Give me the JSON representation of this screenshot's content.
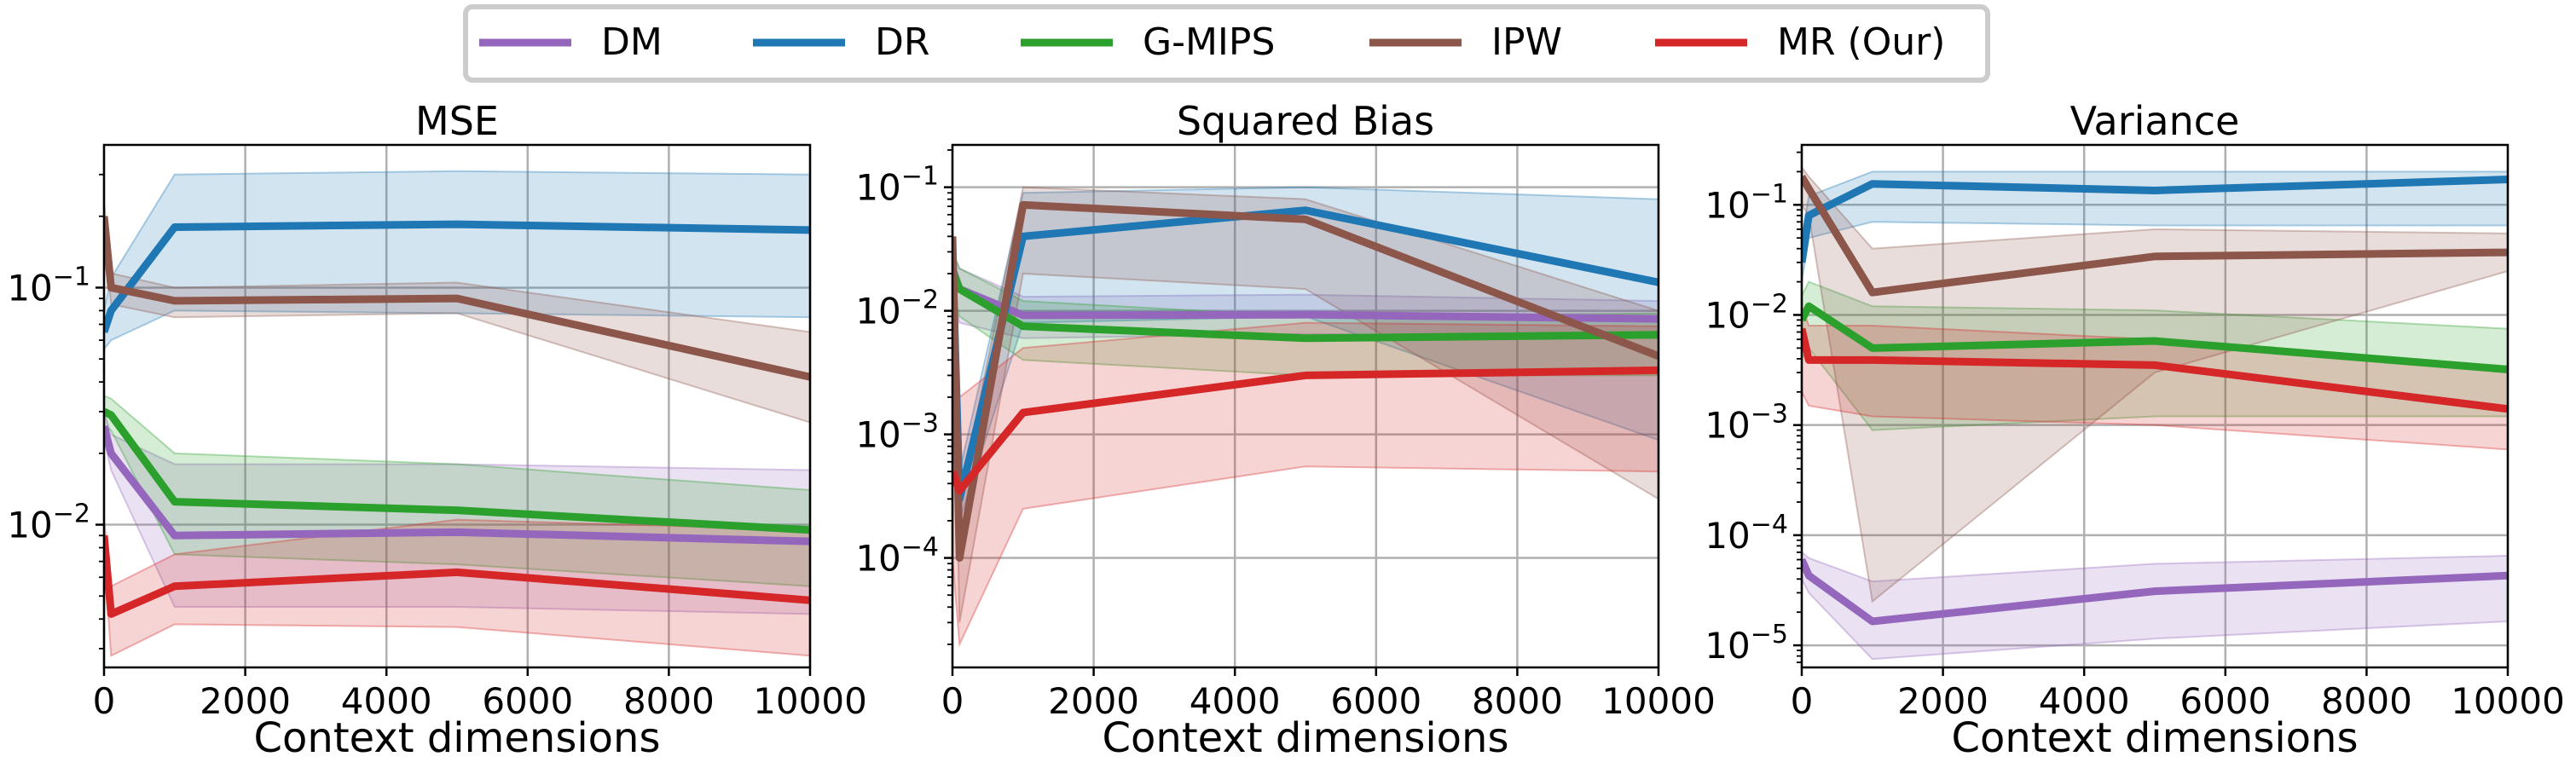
{
  "legend": [
    {
      "label": "DM",
      "color": "#9467bd"
    },
    {
      "label": "DR",
      "color": "#1f77b4"
    },
    {
      "label": "G-MIPS",
      "color": "#2ca02c"
    },
    {
      "label": "IPW",
      "color": "#8c564b"
    },
    {
      "label": "MR (Our)",
      "color": "#d62728"
    }
  ],
  "chart_data": [
    {
      "type": "line",
      "title": "MSE",
      "xlabel": "Context dimensions",
      "ylabel": "",
      "yscale": "log",
      "xlim": [
        0,
        10000
      ],
      "ylim": [
        0.0025,
        0.4
      ],
      "grid": true,
      "xticks": [
        0,
        2000,
        4000,
        6000,
        8000,
        10000
      ],
      "xtick_labels": [
        "0",
        "2000",
        "4000",
        "6000",
        "8000",
        "10000"
      ],
      "yticks": [
        0.01,
        0.1
      ],
      "ytick_labels": [
        {
          "base": "10",
          "exp": "−2"
        },
        {
          "base": "10",
          "exp": "−1"
        }
      ],
      "x": [
        0,
        100,
        1000,
        5000,
        10000
      ],
      "series": [
        {
          "name": "DM",
          "values": [
            0.026,
            0.02,
            0.009,
            0.0093,
            0.0085
          ],
          "lower": [
            0.023,
            0.017,
            0.0045,
            0.0045,
            0.0042
          ],
          "upper": [
            0.03,
            0.024,
            0.018,
            0.018,
            0.017
          ]
        },
        {
          "name": "DR",
          "values": [
            0.065,
            0.08,
            0.18,
            0.185,
            0.175
          ],
          "lower": [
            0.055,
            0.06,
            0.08,
            0.078,
            0.075
          ],
          "upper": [
            0.08,
            0.11,
            0.3,
            0.31,
            0.3
          ]
        },
        {
          "name": "G-MIPS",
          "values": [
            0.03,
            0.029,
            0.0125,
            0.0115,
            0.0095
          ],
          "lower": [
            0.026,
            0.025,
            0.0075,
            0.0068,
            0.0055
          ],
          "upper": [
            0.035,
            0.034,
            0.02,
            0.018,
            0.014
          ]
        },
        {
          "name": "IPW",
          "values": [
            0.2,
            0.1,
            0.088,
            0.09,
            0.042
          ],
          "lower": [
            0.17,
            0.085,
            0.075,
            0.078,
            0.027
          ],
          "upper": [
            0.23,
            0.115,
            0.1,
            0.105,
            0.065
          ]
        },
        {
          "name": "MR (Our)",
          "values": [
            0.009,
            0.0042,
            0.0055,
            0.0063,
            0.0048
          ],
          "lower": [
            0.0075,
            0.0028,
            0.0038,
            0.0037,
            0.0028
          ],
          "upper": [
            0.0105,
            0.0055,
            0.0075,
            0.0105,
            0.0095
          ]
        }
      ]
    },
    {
      "type": "line",
      "title": "Squared Bias",
      "xlabel": "Context dimensions",
      "ylabel": "",
      "yscale": "log",
      "xlim": [
        0,
        10000
      ],
      "ylim": [
        1.3e-05,
        0.22
      ],
      "grid": true,
      "xticks": [
        0,
        2000,
        4000,
        6000,
        8000,
        10000
      ],
      "xtick_labels": [
        "0",
        "2000",
        "4000",
        "6000",
        "8000",
        "10000"
      ],
      "yticks": [
        0.0001,
        0.001,
        0.01,
        0.1
      ],
      "ytick_labels": [
        {
          "base": "10",
          "exp": "−4"
        },
        {
          "base": "10",
          "exp": "−3"
        },
        {
          "base": "10",
          "exp": "−2"
        },
        {
          "base": "10",
          "exp": "−1"
        }
      ],
      "x": [
        0,
        100,
        1000,
        5000,
        10000
      ],
      "series": [
        {
          "name": "DM",
          "values": [
            0.022,
            0.015,
            0.0092,
            0.0093,
            0.0086
          ],
          "lower": [
            0.015,
            0.008,
            0.006,
            0.0065,
            0.006
          ],
          "upper": [
            0.03,
            0.022,
            0.013,
            0.0135,
            0.012
          ]
        },
        {
          "name": "DR",
          "values": [
            0.03,
            0.0003,
            0.04,
            0.065,
            0.017
          ],
          "lower": [
            0.02,
            0.0002,
            0.008,
            0.009,
            0.0009
          ],
          "upper": [
            0.05,
            0.0005,
            0.09,
            0.1,
            0.08
          ]
        },
        {
          "name": "G-MIPS",
          "values": [
            0.021,
            0.015,
            0.0075,
            0.006,
            0.0064
          ],
          "lower": [
            0.015,
            0.009,
            0.004,
            0.003,
            0.003
          ],
          "upper": [
            0.03,
            0.022,
            0.012,
            0.009,
            0.0095
          ]
        },
        {
          "name": "IPW",
          "values": [
            0.04,
            0.0001,
            0.072,
            0.055,
            0.0043
          ],
          "lower": [
            0.02,
            3e-05,
            0.02,
            0.015,
            0.0003
          ],
          "upper": [
            0.06,
            0.0003,
            0.1,
            0.08,
            0.01
          ]
        },
        {
          "name": "MR (Our)",
          "values": [
            0.0005,
            0.00035,
            0.0015,
            0.003,
            0.0033
          ],
          "lower": [
            0.0001,
            2e-05,
            0.00025,
            0.00055,
            0.0005
          ],
          "upper": [
            0.002,
            0.002,
            0.005,
            0.008,
            0.0075
          ]
        }
      ]
    },
    {
      "type": "line",
      "title": "Variance",
      "xlabel": "Context dimensions",
      "ylabel": "",
      "yscale": "log",
      "xlim": [
        0,
        10000
      ],
      "ylim": [
        6.3e-06,
        0.35
      ],
      "grid": true,
      "xticks": [
        0,
        2000,
        4000,
        6000,
        8000,
        10000
      ],
      "xtick_labels": [
        "0",
        "2000",
        "4000",
        "6000",
        "8000",
        "10000"
      ],
      "yticks": [
        1e-05,
        0.0001,
        0.001,
        0.01,
        0.1
      ],
      "ytick_labels": [
        {
          "base": "10",
          "exp": "−5"
        },
        {
          "base": "10",
          "exp": "−4"
        },
        {
          "base": "10",
          "exp": "−3"
        },
        {
          "base": "10",
          "exp": "−2"
        },
        {
          "base": "10",
          "exp": "−1"
        }
      ],
      "x": [
        0,
        100,
        1000,
        5000,
        10000
      ],
      "series": [
        {
          "name": "DM",
          "values": [
            6e-05,
            4.3e-05,
            1.65e-05,
            3.1e-05,
            4.3e-05
          ],
          "lower": [
            4e-05,
            3e-05,
            7.5e-06,
            1.15e-05,
            1.65e-05
          ],
          "upper": [
            7e-05,
            6.2e-05,
            3.8e-05,
            5.5e-05,
            6.5e-05
          ]
        },
        {
          "name": "DR",
          "values": [
            0.03,
            0.08,
            0.155,
            0.135,
            0.17
          ],
          "lower": [
            0.02,
            0.05,
            0.07,
            0.065,
            0.065
          ],
          "upper": [
            0.05,
            0.12,
            0.2,
            0.2,
            0.2
          ]
        },
        {
          "name": "G-MIPS",
          "values": [
            0.009,
            0.012,
            0.005,
            0.0058,
            0.0032
          ],
          "lower": [
            0.004,
            0.005,
            0.0009,
            0.0012,
            0.0012
          ],
          "upper": [
            0.015,
            0.02,
            0.012,
            0.011,
            0.0075
          ]
        },
        {
          "name": "IPW",
          "values": [
            0.18,
            0.14,
            0.016,
            0.034,
            0.037
          ],
          "lower": [
            0.1,
            0.08,
            2.5e-05,
            0.003,
            0.025
          ],
          "upper": [
            0.22,
            0.18,
            0.04,
            0.06,
            0.055
          ]
        },
        {
          "name": "MR (Our)",
          "values": [
            0.0075,
            0.0039,
            0.0039,
            0.0035,
            0.0014
          ],
          "lower": [
            0.002,
            0.0015,
            0.0012,
            0.001,
            0.0006
          ],
          "upper": [
            0.012,
            0.008,
            0.008,
            0.006,
            0.003
          ]
        }
      ]
    }
  ]
}
